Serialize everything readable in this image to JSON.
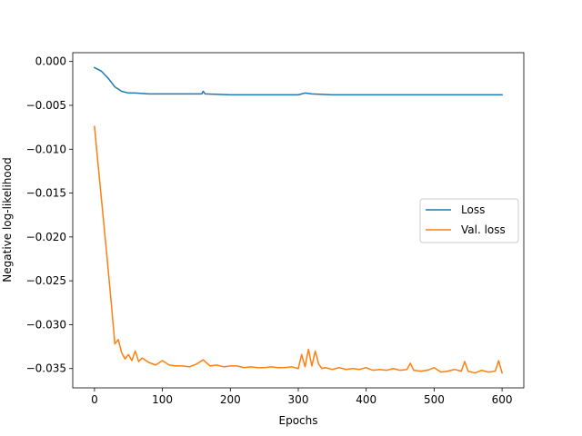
{
  "chart_data": {
    "type": "line",
    "title": "",
    "xlabel": "Epochs",
    "ylabel": "Negative log-likelihood",
    "xlim": [
      -32,
      632
    ],
    "ylim": [
      -0.0372,
      0.001
    ],
    "xticks": [
      0,
      100,
      200,
      300,
      400,
      500,
      600
    ],
    "xtick_labels": [
      "0",
      "100",
      "200",
      "300",
      "400",
      "500",
      "600"
    ],
    "yticks": [
      0.0,
      -0.005,
      -0.01,
      -0.015,
      -0.02,
      -0.025,
      -0.03,
      -0.035
    ],
    "ytick_labels": [
      "0.000",
      "−0.005",
      "−0.010",
      "−0.015",
      "−0.020",
      "−0.025",
      "−0.030",
      "−0.035"
    ],
    "grid": false,
    "legend_position": "center-right",
    "series": [
      {
        "name": "Loss",
        "color": "#1f77b4",
        "x": [
          0,
          5,
          10,
          15,
          20,
          25,
          30,
          40,
          50,
          60,
          80,
          100,
          130,
          158,
          160,
          163,
          200,
          250,
          300,
          310,
          320,
          350,
          400,
          450,
          500,
          550,
          600
        ],
        "y": [
          -0.0007,
          -0.0009,
          -0.0011,
          -0.0015,
          -0.0019,
          -0.0024,
          -0.0029,
          -0.0034,
          -0.0036,
          -0.0036,
          -0.0037,
          -0.0037,
          -0.0037,
          -0.0037,
          -0.0034,
          -0.0037,
          -0.0038,
          -0.0038,
          -0.0038,
          -0.0036,
          -0.0037,
          -0.0038,
          -0.0038,
          -0.0038,
          -0.0038,
          -0.0038,
          -0.0038
        ]
      },
      {
        "name": "Val. loss",
        "color": "#ff7f0e",
        "x": [
          0,
          5,
          10,
          15,
          20,
          25,
          30,
          35,
          40,
          45,
          50,
          55,
          60,
          65,
          70,
          80,
          90,
          100,
          110,
          120,
          130,
          140,
          150,
          160,
          170,
          180,
          190,
          200,
          210,
          220,
          230,
          240,
          250,
          260,
          270,
          280,
          290,
          300,
          305,
          310,
          315,
          320,
          325,
          330,
          335,
          340,
          350,
          360,
          370,
          380,
          390,
          400,
          410,
          420,
          430,
          440,
          450,
          460,
          465,
          470,
          480,
          490,
          500,
          510,
          520,
          530,
          540,
          545,
          550,
          560,
          570,
          580,
          590,
          595,
          600
        ],
        "y": [
          -0.0074,
          -0.0115,
          -0.0155,
          -0.0195,
          -0.0236,
          -0.0278,
          -0.0322,
          -0.0317,
          -0.0332,
          -0.0339,
          -0.0334,
          -0.0341,
          -0.033,
          -0.0342,
          -0.0338,
          -0.0343,
          -0.0346,
          -0.0341,
          -0.0346,
          -0.0347,
          -0.0347,
          -0.0348,
          -0.0345,
          -0.034,
          -0.0347,
          -0.0346,
          -0.0348,
          -0.0347,
          -0.0347,
          -0.0349,
          -0.0348,
          -0.0349,
          -0.0349,
          -0.0348,
          -0.0349,
          -0.0349,
          -0.0348,
          -0.035,
          -0.0334,
          -0.0348,
          -0.0328,
          -0.0347,
          -0.033,
          -0.0345,
          -0.035,
          -0.0349,
          -0.0351,
          -0.0349,
          -0.0351,
          -0.035,
          -0.0351,
          -0.0349,
          -0.0352,
          -0.0351,
          -0.0352,
          -0.035,
          -0.0352,
          -0.0351,
          -0.0344,
          -0.0352,
          -0.0353,
          -0.0352,
          -0.0349,
          -0.0354,
          -0.0353,
          -0.0351,
          -0.0353,
          -0.0342,
          -0.0353,
          -0.0355,
          -0.0352,
          -0.0354,
          -0.0353,
          -0.0341,
          -0.0355
        ]
      }
    ]
  }
}
